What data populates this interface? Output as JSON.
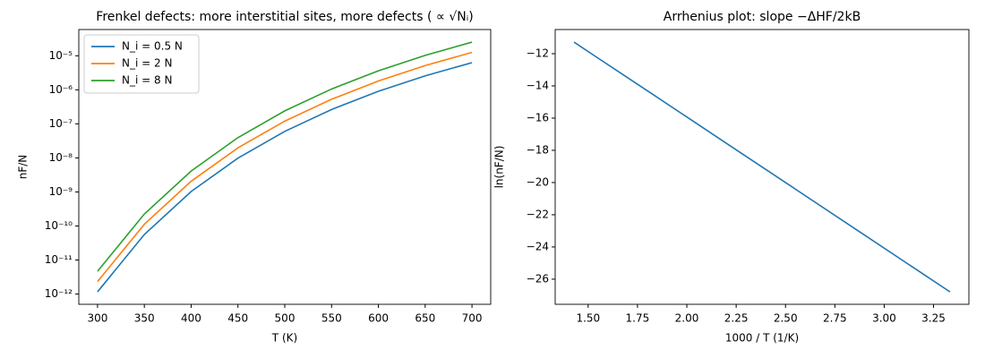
{
  "chart_data": [
    {
      "type": "line",
      "title": "Frenkel defects: more interstitial sites, more defects ( ∝ √Nᵢ)",
      "xlabel": "T (K)",
      "ylabel": "nF/N",
      "x": [
        300,
        350,
        400,
        450,
        500,
        550,
        600,
        650,
        700
      ],
      "series": [
        {
          "name": "N_i = 0.5 N",
          "color": "#1f77b4",
          "values": [
            1.163e-12,
            5.61e-11,
            1.027e-09,
            9.85e-09,
            6.01e-08,
            2.64e-07,
            9.06e-07,
            2.57e-06,
            6.29e-06
          ]
        },
        {
          "name": "N_i = 2 N",
          "color": "#ff7f0e",
          "values": [
            2.33e-12,
            1.121e-10,
            2.055e-09,
            1.97e-08,
            1.202e-07,
            5.28e-07,
            1.813e-06,
            5.15e-06,
            1.259e-05
          ]
        },
        {
          "name": "N_i = 8 N",
          "color": "#2ca02c",
          "values": [
            4.65e-12,
            2.243e-10,
            4.11e-09,
            3.94e-08,
            2.404e-07,
            1.056e-06,
            3.626e-06,
            1.029e-05,
            2.517e-05
          ]
        }
      ],
      "xlim": [
        280,
        720
      ],
      "xticks": [
        300,
        350,
        400,
        450,
        500,
        550,
        600,
        650,
        700
      ],
      "ylim": [
        5e-13,
        5.9e-05
      ],
      "ylog": true,
      "yticks": [
        {
          "value": 1e-12,
          "label": "10⁻¹²"
        },
        {
          "value": 1e-11,
          "label": "10⁻¹¹"
        },
        {
          "value": 1e-10,
          "label": "10⁻¹⁰"
        },
        {
          "value": 1e-09,
          "label": "10⁻⁹"
        },
        {
          "value": 1e-08,
          "label": "10⁻⁸"
        },
        {
          "value": 1e-07,
          "label": "10⁻⁷"
        },
        {
          "value": 1e-06,
          "label": "10⁻⁶"
        },
        {
          "value": 1e-05,
          "label": "10⁻⁵"
        }
      ],
      "legend": "upper-left"
    },
    {
      "type": "line",
      "title": "Arrhenius plot: slope −ΔHF/2kB",
      "xlabel": "1000 / T (1/K)",
      "ylabel": "ln(nF/N)",
      "x": [
        3.3333,
        2.8571,
        2.5,
        2.2222,
        2.0,
        1.8182,
        1.6667,
        1.5385,
        1.4286
      ],
      "series": [
        {
          "color": "#1f77b4",
          "values": [
            -26.79,
            -22.91,
            -20.0,
            -17.74,
            -15.93,
            -14.45,
            -13.22,
            -12.18,
            -11.28
          ]
        }
      ],
      "xlim": [
        1.333,
        3.429
      ],
      "xticks": [
        {
          "value": 1.5,
          "label": "1.50"
        },
        {
          "value": 1.75,
          "label": "1.75"
        },
        {
          "value": 2.0,
          "label": "2.00"
        },
        {
          "value": 2.25,
          "label": "2.25"
        },
        {
          "value": 2.5,
          "label": "2.50"
        },
        {
          "value": 2.75,
          "label": "2.75"
        },
        {
          "value": 3.0,
          "label": "3.00"
        },
        {
          "value": 3.25,
          "label": "3.25"
        }
      ],
      "ylim": [
        -27.56,
        -10.5
      ],
      "yticks": [
        {
          "value": -26,
          "label": "−26"
        },
        {
          "value": -24,
          "label": "−24"
        },
        {
          "value": -22,
          "label": "−22"
        },
        {
          "value": -20,
          "label": "−20"
        },
        {
          "value": -18,
          "label": "−18"
        },
        {
          "value": -16,
          "label": "−16"
        },
        {
          "value": -14,
          "label": "−14"
        },
        {
          "value": -12,
          "label": "−12"
        }
      ]
    }
  ]
}
